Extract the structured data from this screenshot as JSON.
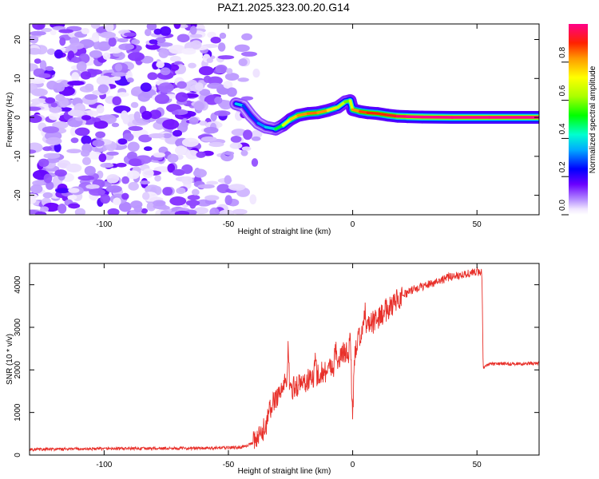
{
  "title": "PAZ1.2025.323.00.20.G14",
  "chart_data": [
    {
      "type": "heatmap",
      "name": "spectrogram",
      "xlabel": "Height of straight line (km)",
      "ylabel": "Frequency (Hz)",
      "xlim": [
        -130,
        75
      ],
      "ylim": [
        -25,
        24
      ],
      "xticks": [
        -100,
        -50,
        0,
        50
      ],
      "yticks": [
        -20,
        -10,
        0,
        10,
        20
      ],
      "colorbar": {
        "label": "Normalized spectral amplitude",
        "range": [
          0,
          1
        ],
        "ticks": [
          0.0,
          0.2,
          0.4,
          0.6,
          0.8
        ],
        "tick_labels": [
          "0.0",
          "0.2",
          "0.4",
          "0.6",
          "0.8"
        ]
      },
      "noise_region_x": [
        -130,
        -38
      ],
      "ridge": {
        "x": [
          -47,
          -44,
          -41,
          -38,
          -35,
          -31,
          -28,
          -25,
          -22,
          -18,
          -14,
          -10,
          -6,
          -3,
          -1,
          0,
          3,
          6,
          10,
          14,
          18,
          22,
          28,
          40,
          55,
          75
        ],
        "freq": [
          3.5,
          3.0,
          0.5,
          -1.5,
          -2.5,
          -3.0,
          -2.0,
          -0.5,
          0.5,
          1.0,
          1.2,
          1.8,
          2.6,
          4.0,
          4.3,
          2.0,
          1.5,
          1.2,
          1.0,
          0.6,
          0.3,
          0.2,
          0.1,
          0.0,
          0.0,
          0.0
        ],
        "amp": [
          0.45,
          0.3,
          0.25,
          0.3,
          0.35,
          0.4,
          0.6,
          0.75,
          0.8,
          0.85,
          0.85,
          0.8,
          0.7,
          0.6,
          0.55,
          0.8,
          0.85,
          0.9,
          0.9,
          0.9,
          0.95,
          1.0,
          1.0,
          1.0,
          1.0,
          1.0
        ]
      }
    },
    {
      "type": "line",
      "name": "snr",
      "xlabel": "Height of straight line (km)",
      "ylabel": "SNR (10 * v/v)",
      "xlim": [
        -130,
        75
      ],
      "ylim": [
        0,
        4500
      ],
      "xticks": [
        -100,
        -50,
        0,
        50
      ],
      "yticks": [
        0,
        1000,
        2000,
        3000,
        4000
      ],
      "color": "#e8302a",
      "series": [
        {
          "name": "SNR",
          "x": [
            -130,
            -100,
            -60,
            -45,
            -40,
            -37,
            -35,
            -33,
            -31,
            -29,
            -27,
            -25,
            -22,
            -18,
            -14,
            -10,
            -6,
            -3,
            -1,
            0,
            1,
            3,
            6,
            10,
            15,
            20,
            25,
            30,
            35,
            40,
            45,
            50,
            52,
            52.5,
            55,
            60,
            65,
            70,
            75
          ],
          "y": [
            130,
            150,
            160,
            180,
            280,
            450,
            700,
            1100,
            1350,
            1500,
            1700,
            1550,
            1650,
            1750,
            1900,
            2000,
            2200,
            2450,
            2300,
            1100,
            2500,
            2800,
            3000,
            3200,
            3500,
            3750,
            3900,
            4000,
            4100,
            4200,
            4250,
            4300,
            4300,
            2050,
            2130,
            2150,
            2140,
            2150,
            2150
          ],
          "spikes": [
            {
              "x": -26,
              "y": 2620
            },
            {
              "x": -15,
              "y": 2250
            },
            {
              "x": -7,
              "y": 2600
            },
            {
              "x": -1,
              "y": 2950
            },
            {
              "x": 0,
              "y": 1000
            },
            {
              "x": 5,
              "y": 3550
            },
            {
              "x": 10,
              "y": 3200
            },
            {
              "x": 17,
              "y": 3750
            }
          ]
        }
      ]
    }
  ]
}
